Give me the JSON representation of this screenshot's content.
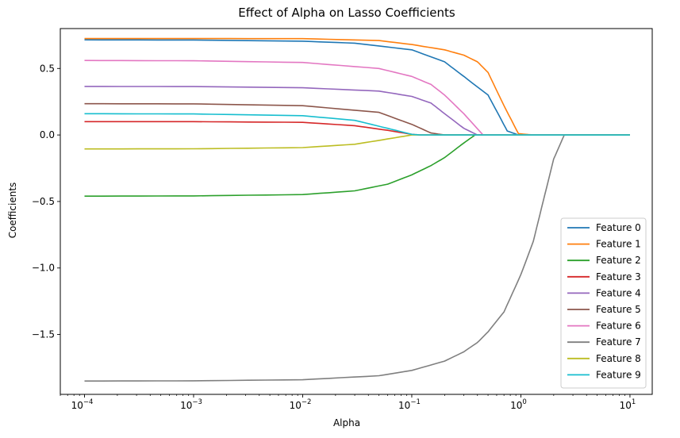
{
  "chart_data": {
    "type": "line",
    "title": "Effect of Alpha on Lasso Coefficients",
    "xlabel": "Alpha",
    "ylabel": "Coefficients",
    "xscale": "log",
    "xlim": [
      6e-05,
      16
    ],
    "ylim": [
      -1.95,
      0.8
    ],
    "x_ticks": [
      {
        "v": 0.0001,
        "base": "10",
        "exp": "−4"
      },
      {
        "v": 0.001,
        "base": "10",
        "exp": "−3"
      },
      {
        "v": 0.01,
        "base": "10",
        "exp": "−2"
      },
      {
        "v": 0.1,
        "base": "10",
        "exp": "−1"
      },
      {
        "v": 1,
        "base": "10",
        "exp": "0"
      },
      {
        "v": 10,
        "base": "10",
        "exp": "1"
      }
    ],
    "y_ticks": [
      {
        "v": 0.5,
        "label": "0.5"
      },
      {
        "v": 0.0,
        "label": "0.0"
      },
      {
        "v": -0.5,
        "label": "−0.5"
      },
      {
        "v": -1.0,
        "label": "−1.0"
      },
      {
        "v": -1.5,
        "label": "−1.5"
      }
    ],
    "grid": false,
    "legend_position": "lower-right",
    "series": [
      {
        "name": "Feature 0",
        "color": "#1f77b4",
        "x": [
          0.0001,
          0.001,
          0.01,
          0.03,
          0.1,
          0.2,
          0.3,
          0.5,
          0.6,
          0.75,
          0.95,
          10
        ],
        "y": [
          0.715,
          0.714,
          0.705,
          0.69,
          0.64,
          0.55,
          0.44,
          0.3,
          0.18,
          0.03,
          0.0,
          0.0
        ]
      },
      {
        "name": "Feature 1",
        "color": "#ff7f0e",
        "x": [
          0.0001,
          0.001,
          0.01,
          0.05,
          0.1,
          0.2,
          0.3,
          0.4,
          0.5,
          0.7,
          0.95,
          1.3,
          10
        ],
        "y": [
          0.725,
          0.725,
          0.724,
          0.71,
          0.68,
          0.64,
          0.6,
          0.55,
          0.47,
          0.22,
          0.01,
          0.0,
          0.0
        ]
      },
      {
        "name": "Feature 2",
        "color": "#2ca02c",
        "x": [
          0.0001,
          0.001,
          0.01,
          0.03,
          0.06,
          0.1,
          0.15,
          0.2,
          0.3,
          0.38,
          10
        ],
        "y": [
          -0.46,
          -0.458,
          -0.448,
          -0.42,
          -0.37,
          -0.3,
          -0.23,
          -0.17,
          -0.06,
          0.0,
          0.0
        ]
      },
      {
        "name": "Feature 3",
        "color": "#d62728",
        "x": [
          0.0001,
          0.001,
          0.01,
          0.03,
          0.06,
          0.1,
          0.12,
          10
        ],
        "y": [
          0.1,
          0.1,
          0.095,
          0.07,
          0.035,
          0.005,
          0.0,
          0.0
        ]
      },
      {
        "name": "Feature 4",
        "color": "#9467bd",
        "x": [
          0.0001,
          0.001,
          0.01,
          0.05,
          0.1,
          0.15,
          0.2,
          0.3,
          0.4,
          10
        ],
        "y": [
          0.365,
          0.364,
          0.355,
          0.33,
          0.29,
          0.24,
          0.16,
          0.05,
          0.0,
          0.0
        ]
      },
      {
        "name": "Feature 5",
        "color": "#8c564b",
        "x": [
          0.0001,
          0.001,
          0.01,
          0.05,
          0.1,
          0.15,
          0.2,
          10
        ],
        "y": [
          0.235,
          0.234,
          0.22,
          0.17,
          0.08,
          0.015,
          0.0,
          0.0
        ]
      },
      {
        "name": "Feature 6",
        "color": "#e377c2",
        "x": [
          0.0001,
          0.001,
          0.01,
          0.05,
          0.1,
          0.15,
          0.2,
          0.3,
          0.45,
          10
        ],
        "y": [
          0.56,
          0.558,
          0.545,
          0.5,
          0.44,
          0.38,
          0.3,
          0.16,
          0.0,
          0.0
        ]
      },
      {
        "name": "Feature 7",
        "color": "#7f7f7f",
        "x": [
          0.0001,
          0.001,
          0.01,
          0.05,
          0.1,
          0.2,
          0.3,
          0.4,
          0.5,
          0.7,
          1.0,
          1.3,
          1.6,
          2.0,
          2.5,
          10
        ],
        "y": [
          -1.85,
          -1.848,
          -1.84,
          -1.81,
          -1.77,
          -1.7,
          -1.63,
          -1.56,
          -1.48,
          -1.33,
          -1.05,
          -0.8,
          -0.5,
          -0.18,
          0.0,
          0.0
        ]
      },
      {
        "name": "Feature 8",
        "color": "#bcbd22",
        "x": [
          0.0001,
          0.001,
          0.01,
          0.03,
          0.06,
          0.1,
          10
        ],
        "y": [
          -0.105,
          -0.104,
          -0.095,
          -0.07,
          -0.03,
          0.0,
          0.0
        ]
      },
      {
        "name": "Feature 9",
        "color": "#17becf",
        "x": [
          0.0001,
          0.001,
          0.01,
          0.03,
          0.06,
          0.1,
          0.12,
          10
        ],
        "y": [
          0.16,
          0.158,
          0.145,
          0.11,
          0.05,
          0.005,
          0.0,
          0.0
        ]
      }
    ]
  }
}
